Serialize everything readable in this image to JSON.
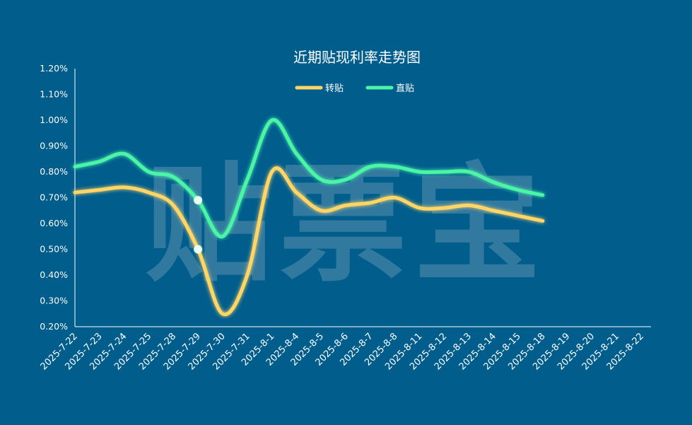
{
  "chart_data": {
    "type": "line",
    "title": "近期贴现利率走势图",
    "watermark": "贴票宝",
    "categories": [
      "2025-7-22",
      "2025-7-23",
      "2025-7-24",
      "2025-7-25",
      "2025-7-28",
      "2025-7-29",
      "2025-7-30",
      "2025-7-31",
      "2025-8-1",
      "2025-8-4",
      "2025-8-5",
      "2025-8-6",
      "2025-8-7",
      "2025-8-8",
      "2025-8-11",
      "2025-8-12",
      "2025-8-13",
      "2025-8-14",
      "2025-8-15",
      "2025-8-18",
      "2025-8-19",
      "2025-8-20",
      "2025-8-21",
      "2025-8-22"
    ],
    "series": [
      {
        "name": "转贴",
        "color": "#ffd666",
        "values": [
          0.72,
          0.73,
          0.74,
          0.72,
          0.67,
          0.5,
          0.25,
          0.4,
          0.8,
          0.72,
          0.65,
          0.67,
          0.68,
          0.7,
          0.66,
          0.66,
          0.67,
          0.65,
          0.63,
          0.61,
          null,
          null,
          null,
          null
        ]
      },
      {
        "name": "直贴",
        "color": "#4cf5a6",
        "values": [
          0.82,
          0.84,
          0.87,
          0.8,
          0.78,
          0.69,
          0.55,
          0.77,
          1.0,
          0.87,
          0.77,
          0.77,
          0.82,
          0.82,
          0.8,
          0.8,
          0.8,
          0.76,
          0.73,
          0.71,
          null,
          null,
          null,
          null
        ]
      }
    ],
    "ylim": [
      0.2,
      1.2
    ],
    "yticks": [
      "0.20%",
      "0.30%",
      "0.40%",
      "0.50%",
      "0.60%",
      "0.70%",
      "0.80%",
      "0.90%",
      "1.00%",
      "1.10%",
      "1.20%"
    ],
    "highlight_index": 5,
    "legend_position": "top-center",
    "grid": false
  }
}
